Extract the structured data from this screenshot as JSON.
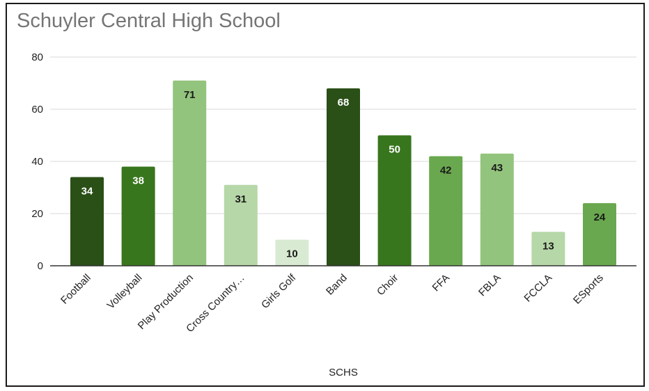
{
  "chart_data": {
    "type": "bar",
    "title": "Schuyler Central High School",
    "xlabel": "SCHS",
    "ylabel": "",
    "ylim": [
      0,
      80
    ],
    "yticks": [
      0,
      20,
      40,
      60,
      80
    ],
    "grid": true,
    "categories": [
      "Football",
      "Volleyball",
      "Play Production",
      "Cross Country…",
      "Girls Golf",
      "Band",
      "Choir",
      "FFA",
      "FBLA",
      "FCCLA",
      "ESports"
    ],
    "values": [
      34,
      38,
      71,
      31,
      10,
      68,
      50,
      42,
      43,
      13,
      24
    ],
    "colors": [
      "#2a4f17",
      "#38761d",
      "#93c47d",
      "#b6d7a8",
      "#d9ead3",
      "#2a4f17",
      "#38761d",
      "#6aa84f",
      "#93c47d",
      "#b6d7a8",
      "#6aa84f"
    ],
    "label_colors": [
      "#ffffff",
      "#ffffff",
      "#1a1a1a",
      "#1a1a1a",
      "#1a1a1a",
      "#ffffff",
      "#ffffff",
      "#1a1a1a",
      "#1a1a1a",
      "#1a1a1a",
      "#1a1a1a"
    ]
  }
}
